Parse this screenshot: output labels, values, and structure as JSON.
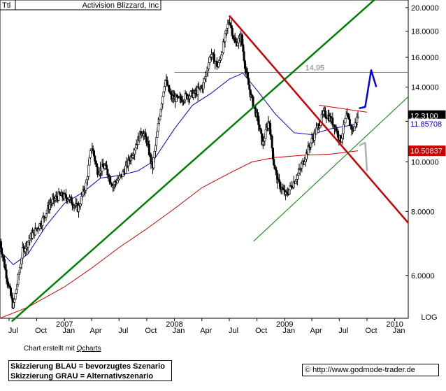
{
  "chart_data": {
    "type": "candlestick",
    "symbol": "Ttl",
    "title": "Activision Blizzard, Inc",
    "y_scale": "log",
    "y_scale_label": "LOG",
    "ylim": [
      4.95,
      20.7
    ],
    "xlim": [
      "2006-06-01",
      "2010-02-15"
    ],
    "y_ticks": [
      "20.0000",
      "18.0000",
      "16.0000",
      "14.0000",
      "12.0000",
      "10.0000",
      "8.0000",
      "6.0000"
    ],
    "x_month_ticks": [
      {
        "date": "2006-07-01",
        "label": "Jul"
      },
      {
        "date": "2006-10-01",
        "label": "Oct"
      },
      {
        "date": "2007-01-01",
        "label": "Jan"
      },
      {
        "date": "2007-04-01",
        "label": "Apr"
      },
      {
        "date": "2007-07-01",
        "label": "Jul"
      },
      {
        "date": "2007-10-01",
        "label": "Oct"
      },
      {
        "date": "2008-01-01",
        "label": "Jan"
      },
      {
        "date": "2008-04-01",
        "label": "Apr"
      },
      {
        "date": "2008-07-01",
        "label": "Jul"
      },
      {
        "date": "2008-10-01",
        "label": "Oct"
      },
      {
        "date": "2009-01-01",
        "label": "Jan"
      },
      {
        "date": "2009-04-01",
        "label": "Apr"
      },
      {
        "date": "2009-07-01",
        "label": "Jul"
      },
      {
        "date": "2009-10-01",
        "label": "Oct"
      },
      {
        "date": "2010-01-01",
        "label": "Jan"
      }
    ],
    "x_year_ticks": [
      {
        "date": "2007-01-01",
        "label": "2007"
      },
      {
        "date": "2008-01-01",
        "label": "2008"
      },
      {
        "date": "2009-01-01",
        "label": "2009"
      },
      {
        "date": "2010-01-01",
        "label": "2010"
      }
    ],
    "price_path": [
      [
        "2006-06-01",
        7.0
      ],
      [
        "2006-06-20",
        6.1
      ],
      [
        "2006-07-15",
        5.2
      ],
      [
        "2006-08-15",
        6.7
      ],
      [
        "2006-09-15",
        7.2
      ],
      [
        "2006-10-15",
        7.6
      ],
      [
        "2006-11-15",
        8.3
      ],
      [
        "2006-12-15",
        8.6
      ],
      [
        "2007-01-15",
        8.5
      ],
      [
        "2007-02-15",
        8.1
      ],
      [
        "2007-03-15",
        9.1
      ],
      [
        "2007-04-01",
        10.8
      ],
      [
        "2007-04-20",
        9.6
      ],
      [
        "2007-05-15",
        9.8
      ],
      [
        "2007-06-10",
        9.0
      ],
      [
        "2007-07-10",
        9.4
      ],
      [
        "2007-08-15",
        10.4
      ],
      [
        "2007-09-15",
        11.5
      ],
      [
        "2007-10-01",
        11.0
      ],
      [
        "2007-10-20",
        9.7
      ],
      [
        "2007-11-10",
        12.0
      ],
      [
        "2007-12-01",
        14.5
      ],
      [
        "2007-12-20",
        13.4
      ],
      [
        "2008-01-15",
        13.2
      ],
      [
        "2008-02-15",
        13.5
      ],
      [
        "2008-03-10",
        13.6
      ],
      [
        "2008-04-05",
        14.1
      ],
      [
        "2008-05-01",
        16.3
      ],
      [
        "2008-05-25",
        15.3
      ],
      [
        "2008-06-15",
        17.3
      ],
      [
        "2008-07-01",
        19.0
      ],
      [
        "2008-07-20",
        17.0
      ],
      [
        "2008-08-10",
        17.5
      ],
      [
        "2008-08-25",
        15.0
      ],
      [
        "2008-09-10",
        13.5
      ],
      [
        "2008-10-05",
        12.0
      ],
      [
        "2008-10-20",
        10.8
      ],
      [
        "2008-11-10",
        12.1
      ],
      [
        "2008-11-25",
        10.0
      ],
      [
        "2008-12-10",
        9.1
      ],
      [
        "2009-01-05",
        8.6
      ],
      [
        "2009-01-25",
        9.0
      ],
      [
        "2009-02-20",
        9.6
      ],
      [
        "2009-03-20",
        10.6
      ],
      [
        "2009-04-15",
        11.5
      ],
      [
        "2009-05-10",
        12.4
      ],
      [
        "2009-05-25",
        12.3
      ],
      [
        "2009-06-15",
        11.8
      ],
      [
        "2009-07-05",
        11.0
      ],
      [
        "2009-07-25",
        12.3
      ],
      [
        "2009-08-15",
        11.5
      ],
      [
        "2009-09-01",
        12.3
      ]
    ],
    "series": [
      {
        "name": "",
        "color": "#0000cc",
        "points": [
          [
            "2006-06-01",
            6.7
          ],
          [
            "2006-07-15",
            6.3
          ],
          [
            "2006-09-01",
            6.6
          ],
          [
            "2006-11-01",
            7.5
          ],
          [
            "2007-01-01",
            8.3
          ],
          [
            "2007-03-01",
            8.7
          ],
          [
            "2007-05-01",
            9.3
          ],
          [
            "2007-07-01",
            9.4
          ],
          [
            "2007-09-01",
            9.6
          ],
          [
            "2007-10-20",
            10.0
          ],
          [
            "2008-01-01",
            11.6
          ],
          [
            "2008-03-01",
            12.9
          ],
          [
            "2008-05-01",
            13.6
          ],
          [
            "2008-07-01",
            14.5
          ],
          [
            "2008-08-15",
            14.9
          ],
          [
            "2008-10-01",
            13.8
          ],
          [
            "2008-12-01",
            12.4
          ],
          [
            "2009-02-01",
            11.4
          ],
          [
            "2009-04-01",
            11.3
          ],
          [
            "2009-06-01",
            11.6
          ],
          [
            "2009-09-01",
            11.857
          ]
        ]
      },
      {
        "name": "",
        "color": "#cc0000",
        "points": [
          [
            "2006-06-01",
            4.95
          ],
          [
            "2006-09-01",
            5.2
          ],
          [
            "2007-01-01",
            5.7
          ],
          [
            "2007-04-01",
            6.2
          ],
          [
            "2007-07-01",
            6.8
          ],
          [
            "2007-10-01",
            7.4
          ],
          [
            "2008-01-01",
            8.1
          ],
          [
            "2008-04-01",
            8.9
          ],
          [
            "2008-07-01",
            9.5
          ],
          [
            "2008-09-15",
            10.0
          ],
          [
            "2008-12-01",
            10.2
          ],
          [
            "2009-03-01",
            10.3
          ],
          [
            "2009-06-01",
            10.35
          ],
          [
            "2009-09-01",
            10.508
          ]
        ]
      }
    ],
    "price_tags": [
      {
        "label": "12.3100",
        "value": 12.31,
        "bg": "#000000",
        "fg": "#ffffff"
      },
      {
        "label": "11.85708",
        "value": 11.857,
        "bg": "#ffffff",
        "fg": "#0000cc"
      },
      {
        "label": "10.50837",
        "value": 10.508,
        "bg": "#cc0000",
        "fg": "#ffffff"
      }
    ],
    "resistance_level": {
      "label": "14,95",
      "value": 14.95
    },
    "trendlines": [
      {
        "color": "#008000",
        "width": 2.5,
        "from": [
          "2006-07-10",
          4.88
        ],
        "to": [
          "2009-10-25",
          20.7
        ]
      },
      {
        "color": "#cc0000",
        "width": 2.5,
        "from": [
          "2008-07-01",
          19.3
        ],
        "to": [
          "2010-02-15",
          7.6
        ]
      },
      {
        "color": "#008000",
        "width": 1,
        "from": [
          "2008-09-20",
          7.0
        ],
        "to": [
          "2010-02-15",
          13.4
        ]
      },
      {
        "color": "#cc0000",
        "width": 1,
        "from": [
          "2009-04-25",
          12.9
        ],
        "to": [
          "2009-10-01",
          12.5
        ]
      }
    ],
    "scenarios": [
      {
        "color": "#0000ee",
        "points": [
          [
            "2009-09-05",
            12.72
          ],
          [
            "2009-09-25",
            12.8
          ],
          [
            "2009-10-15",
            15.1
          ],
          [
            "2009-11-01",
            14.0
          ]
        ]
      },
      {
        "color": "#b0b0b0",
        "points": [
          [
            "2009-09-05",
            10.76
          ],
          [
            "2009-09-25",
            10.9
          ],
          [
            "2009-10-01",
            9.6
          ]
        ]
      }
    ]
  },
  "footer": {
    "credit_prefix": "Chart erstellt mit ",
    "credit_link": "Qcharts",
    "legend_blue": "Skizzierung BLAU = bevorzugtes Szenario",
    "legend_grey": "Skizzierung GRAU = Alternativszenario",
    "copyright_symbol": "©",
    "url": "http://www.godmode-trader.de"
  }
}
